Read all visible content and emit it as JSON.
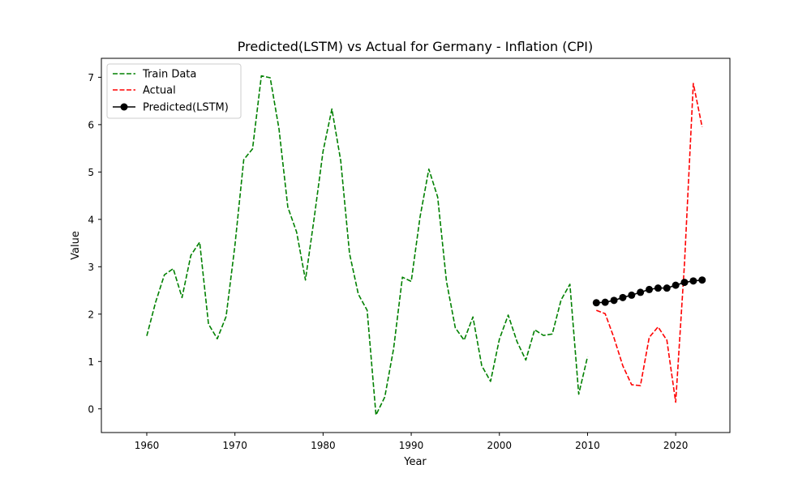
{
  "chart_data": {
    "type": "line",
    "title": "Predicted(LSTM) vs Actual for Germany - Inflation (CPI)",
    "xlabel": "Year",
    "ylabel": "Value",
    "xlim": [
      1954.85,
      2026.15
    ],
    "ylim": [
      -0.5,
      7.4
    ],
    "xticks": [
      1960,
      1970,
      1980,
      1990,
      2000,
      2010,
      2020
    ],
    "yticks": [
      0,
      1,
      2,
      3,
      4,
      5,
      6,
      7
    ],
    "grid": false,
    "legend_position": "upper-left",
    "series": [
      {
        "name": "Train Data",
        "color": "#008000",
        "style": "dashed",
        "marker": "none",
        "x": [
          1960,
          1961,
          1962,
          1963,
          1964,
          1965,
          1966,
          1967,
          1968,
          1969,
          1970,
          1971,
          1972,
          1973,
          1974,
          1975,
          1976,
          1977,
          1978,
          1979,
          1980,
          1981,
          1982,
          1983,
          1984,
          1985,
          1986,
          1987,
          1988,
          1989,
          1990,
          1991,
          1992,
          1993,
          1994,
          1995,
          1996,
          1997,
          1998,
          1999,
          2000,
          2001,
          2002,
          2003,
          2004,
          2005,
          2006,
          2007,
          2008,
          2009,
          2010
        ],
        "y": [
          1.54,
          2.25,
          2.83,
          2.96,
          2.35,
          3.24,
          3.52,
          1.79,
          1.48,
          1.95,
          3.45,
          5.26,
          5.49,
          7.03,
          6.99,
          5.91,
          4.26,
          3.73,
          2.72,
          4.04,
          5.44,
          6.33,
          5.24,
          3.28,
          2.42,
          2.08,
          -0.13,
          0.25,
          1.27,
          2.78,
          2.69,
          4.05,
          5.06,
          4.47,
          2.69,
          1.71,
          1.45,
          1.94,
          0.91,
          0.58,
          1.47,
          1.98,
          1.42,
          1.03,
          1.67,
          1.55,
          1.58,
          2.3,
          2.63,
          0.31,
          1.1
        ]
      },
      {
        "name": "Actual",
        "color": "#ff0000",
        "style": "dashed",
        "marker": "none",
        "x": [
          2011,
          2012,
          2013,
          2014,
          2015,
          2016,
          2017,
          2018,
          2019,
          2020,
          2021,
          2022,
          2023
        ],
        "y": [
          2.08,
          2.01,
          1.5,
          0.91,
          0.51,
          0.49,
          1.51,
          1.73,
          1.45,
          0.14,
          3.07,
          6.87,
          5.95
        ]
      },
      {
        "name": "Predicted(LSTM)",
        "color": "#000000",
        "style": "solid",
        "marker": "circle",
        "x": [
          2011,
          2012,
          2013,
          2014,
          2015,
          2016,
          2017,
          2018,
          2019,
          2020,
          2021,
          2022,
          2023
        ],
        "y": [
          2.24,
          2.25,
          2.29,
          2.35,
          2.4,
          2.46,
          2.52,
          2.55,
          2.55,
          2.61,
          2.67,
          2.7,
          2.72
        ]
      }
    ]
  }
}
